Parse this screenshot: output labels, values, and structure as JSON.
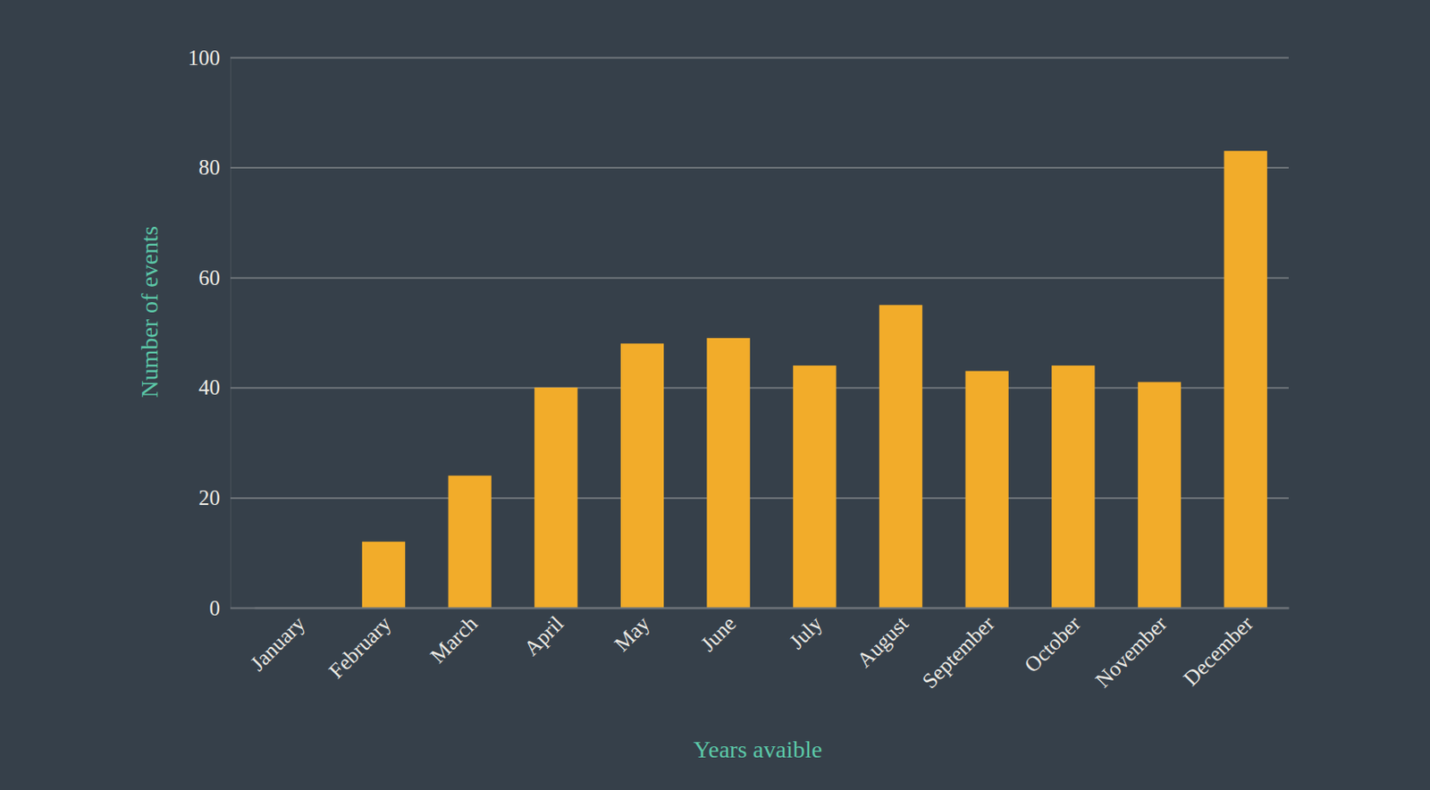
{
  "chart_data": {
    "type": "bar",
    "x_label": "Years avaible",
    "y_label": "Number of events",
    "categories": [
      "January",
      "February",
      "March",
      "April",
      "May",
      "June",
      "July",
      "August",
      "September",
      "October",
      "November",
      "December"
    ],
    "values": [
      0,
      12,
      24,
      40,
      48,
      49,
      44,
      55,
      43,
      44,
      41,
      83
    ],
    "color": "#f2ac2a",
    "ylim": [
      0,
      100
    ],
    "yticks": [
      0,
      20,
      40,
      60,
      80,
      100
    ],
    "grid": true
  }
}
